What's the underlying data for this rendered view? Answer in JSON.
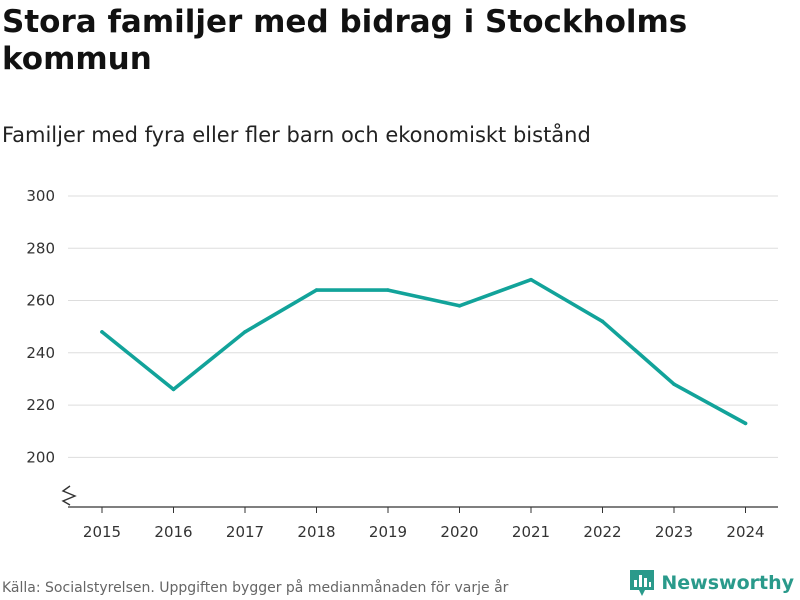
{
  "chart_data": {
    "type": "line",
    "title": "Stora familjer med bidrag i Stockholms kommun",
    "subtitle": "Familjer med fyra eller fler barn och ekonomiskt bistånd",
    "categories": [
      "2015",
      "2016",
      "2017",
      "2018",
      "2019",
      "2020",
      "2021",
      "2022",
      "2023",
      "2024"
    ],
    "series": [
      {
        "name": "Familjer",
        "values": [
          248,
          226,
          248,
          264,
          264,
          258,
          268,
          252,
          228,
          213
        ]
      }
    ],
    "yticks": [
      200,
      220,
      240,
      260,
      280,
      300
    ],
    "ylim": [
      181,
      300
    ],
    "axis_break": true,
    "grid": true,
    "line_color": "#12a39a",
    "grid_color": "#dddddd"
  },
  "footer": {
    "source": "Källa: Socialstyrelsen. Uppgiften bygger på medianmånaden för varje år",
    "brand": "Newsworthy",
    "brand_icon": "newsworthy-logo-icon",
    "brand_color": "#2a9a8b"
  }
}
